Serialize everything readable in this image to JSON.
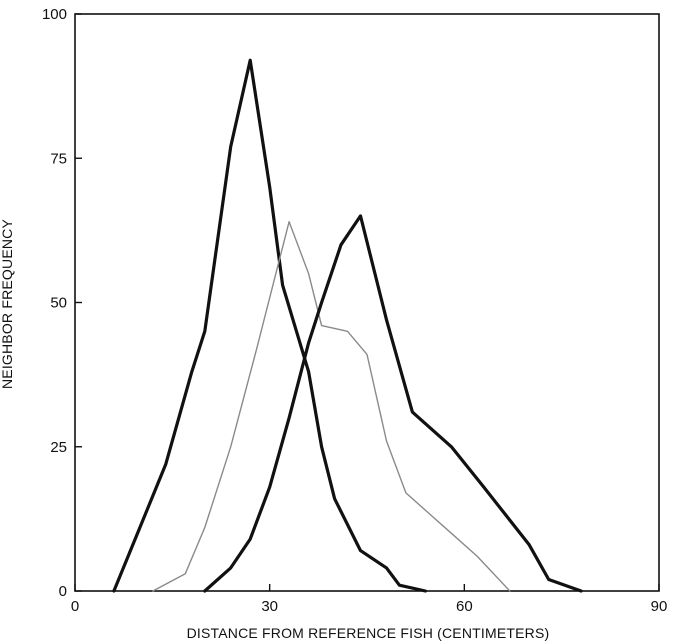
{
  "chart_data": {
    "type": "line",
    "title": "",
    "xlabel": "DISTANCE FROM REFERENCE FISH (CENTIMETERS)",
    "ylabel": "NEIGHBOR FREQUENCY",
    "xlim": [
      0,
      90
    ],
    "ylim": [
      0,
      100
    ],
    "xticks": [
      0,
      30,
      60,
      90
    ],
    "yticks": [
      0,
      25,
      50,
      75,
      100
    ],
    "grid": false,
    "legend": "none",
    "series": [
      {
        "color": "#111111",
        "style": "thick",
        "points": [
          [
            6,
            0
          ],
          [
            10,
            11
          ],
          [
            14,
            22
          ],
          [
            18,
            38
          ],
          [
            20,
            45
          ],
          [
            24,
            77
          ],
          [
            27,
            92
          ],
          [
            30,
            70
          ],
          [
            32,
            53
          ],
          [
            36,
            38
          ],
          [
            38,
            25
          ],
          [
            40,
            16
          ],
          [
            44,
            7
          ],
          [
            48,
            4
          ],
          [
            50,
            1
          ],
          [
            54,
            0
          ]
        ]
      },
      {
        "color": "#8a8a8a",
        "style": "thin",
        "points": [
          [
            12,
            0
          ],
          [
            17,
            3
          ],
          [
            20,
            11
          ],
          [
            24,
            25
          ],
          [
            28,
            42
          ],
          [
            33,
            64
          ],
          [
            36,
            55
          ],
          [
            38,
            46
          ],
          [
            42,
            45
          ],
          [
            45,
            41
          ],
          [
            48,
            26
          ],
          [
            51,
            17
          ],
          [
            55,
            13
          ],
          [
            58,
            10
          ],
          [
            62,
            6
          ],
          [
            67,
            0
          ]
        ]
      },
      {
        "color": "#111111",
        "style": "thick",
        "points": [
          [
            20,
            0
          ],
          [
            24,
            4
          ],
          [
            27,
            9
          ],
          [
            30,
            18
          ],
          [
            33,
            30
          ],
          [
            36,
            43
          ],
          [
            38,
            50
          ],
          [
            41,
            60
          ],
          [
            44,
            65
          ],
          [
            48,
            47
          ],
          [
            52,
            31
          ],
          [
            58,
            25
          ],
          [
            63,
            18
          ],
          [
            70,
            8
          ],
          [
            73,
            2
          ],
          [
            78,
            0
          ]
        ]
      }
    ]
  }
}
